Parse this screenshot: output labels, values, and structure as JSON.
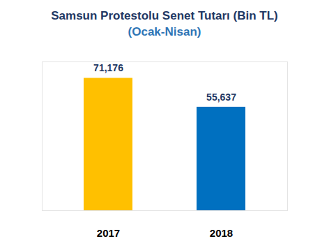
{
  "chart_data": {
    "type": "bar",
    "title": "Samsun Protestolu Senet Tutarı (Bin TL)",
    "subtitle": "(Ocak-Nisan)",
    "categories": [
      "2017",
      "2018"
    ],
    "values": [
      71176,
      55637
    ],
    "value_labels": [
      "71,176",
      "55,637"
    ],
    "colors": [
      "#FFC000",
      "#0070C0"
    ],
    "ylim": [
      0,
      80000
    ],
    "data_labels": true,
    "tick_labels": "x",
    "grid": false
  }
}
